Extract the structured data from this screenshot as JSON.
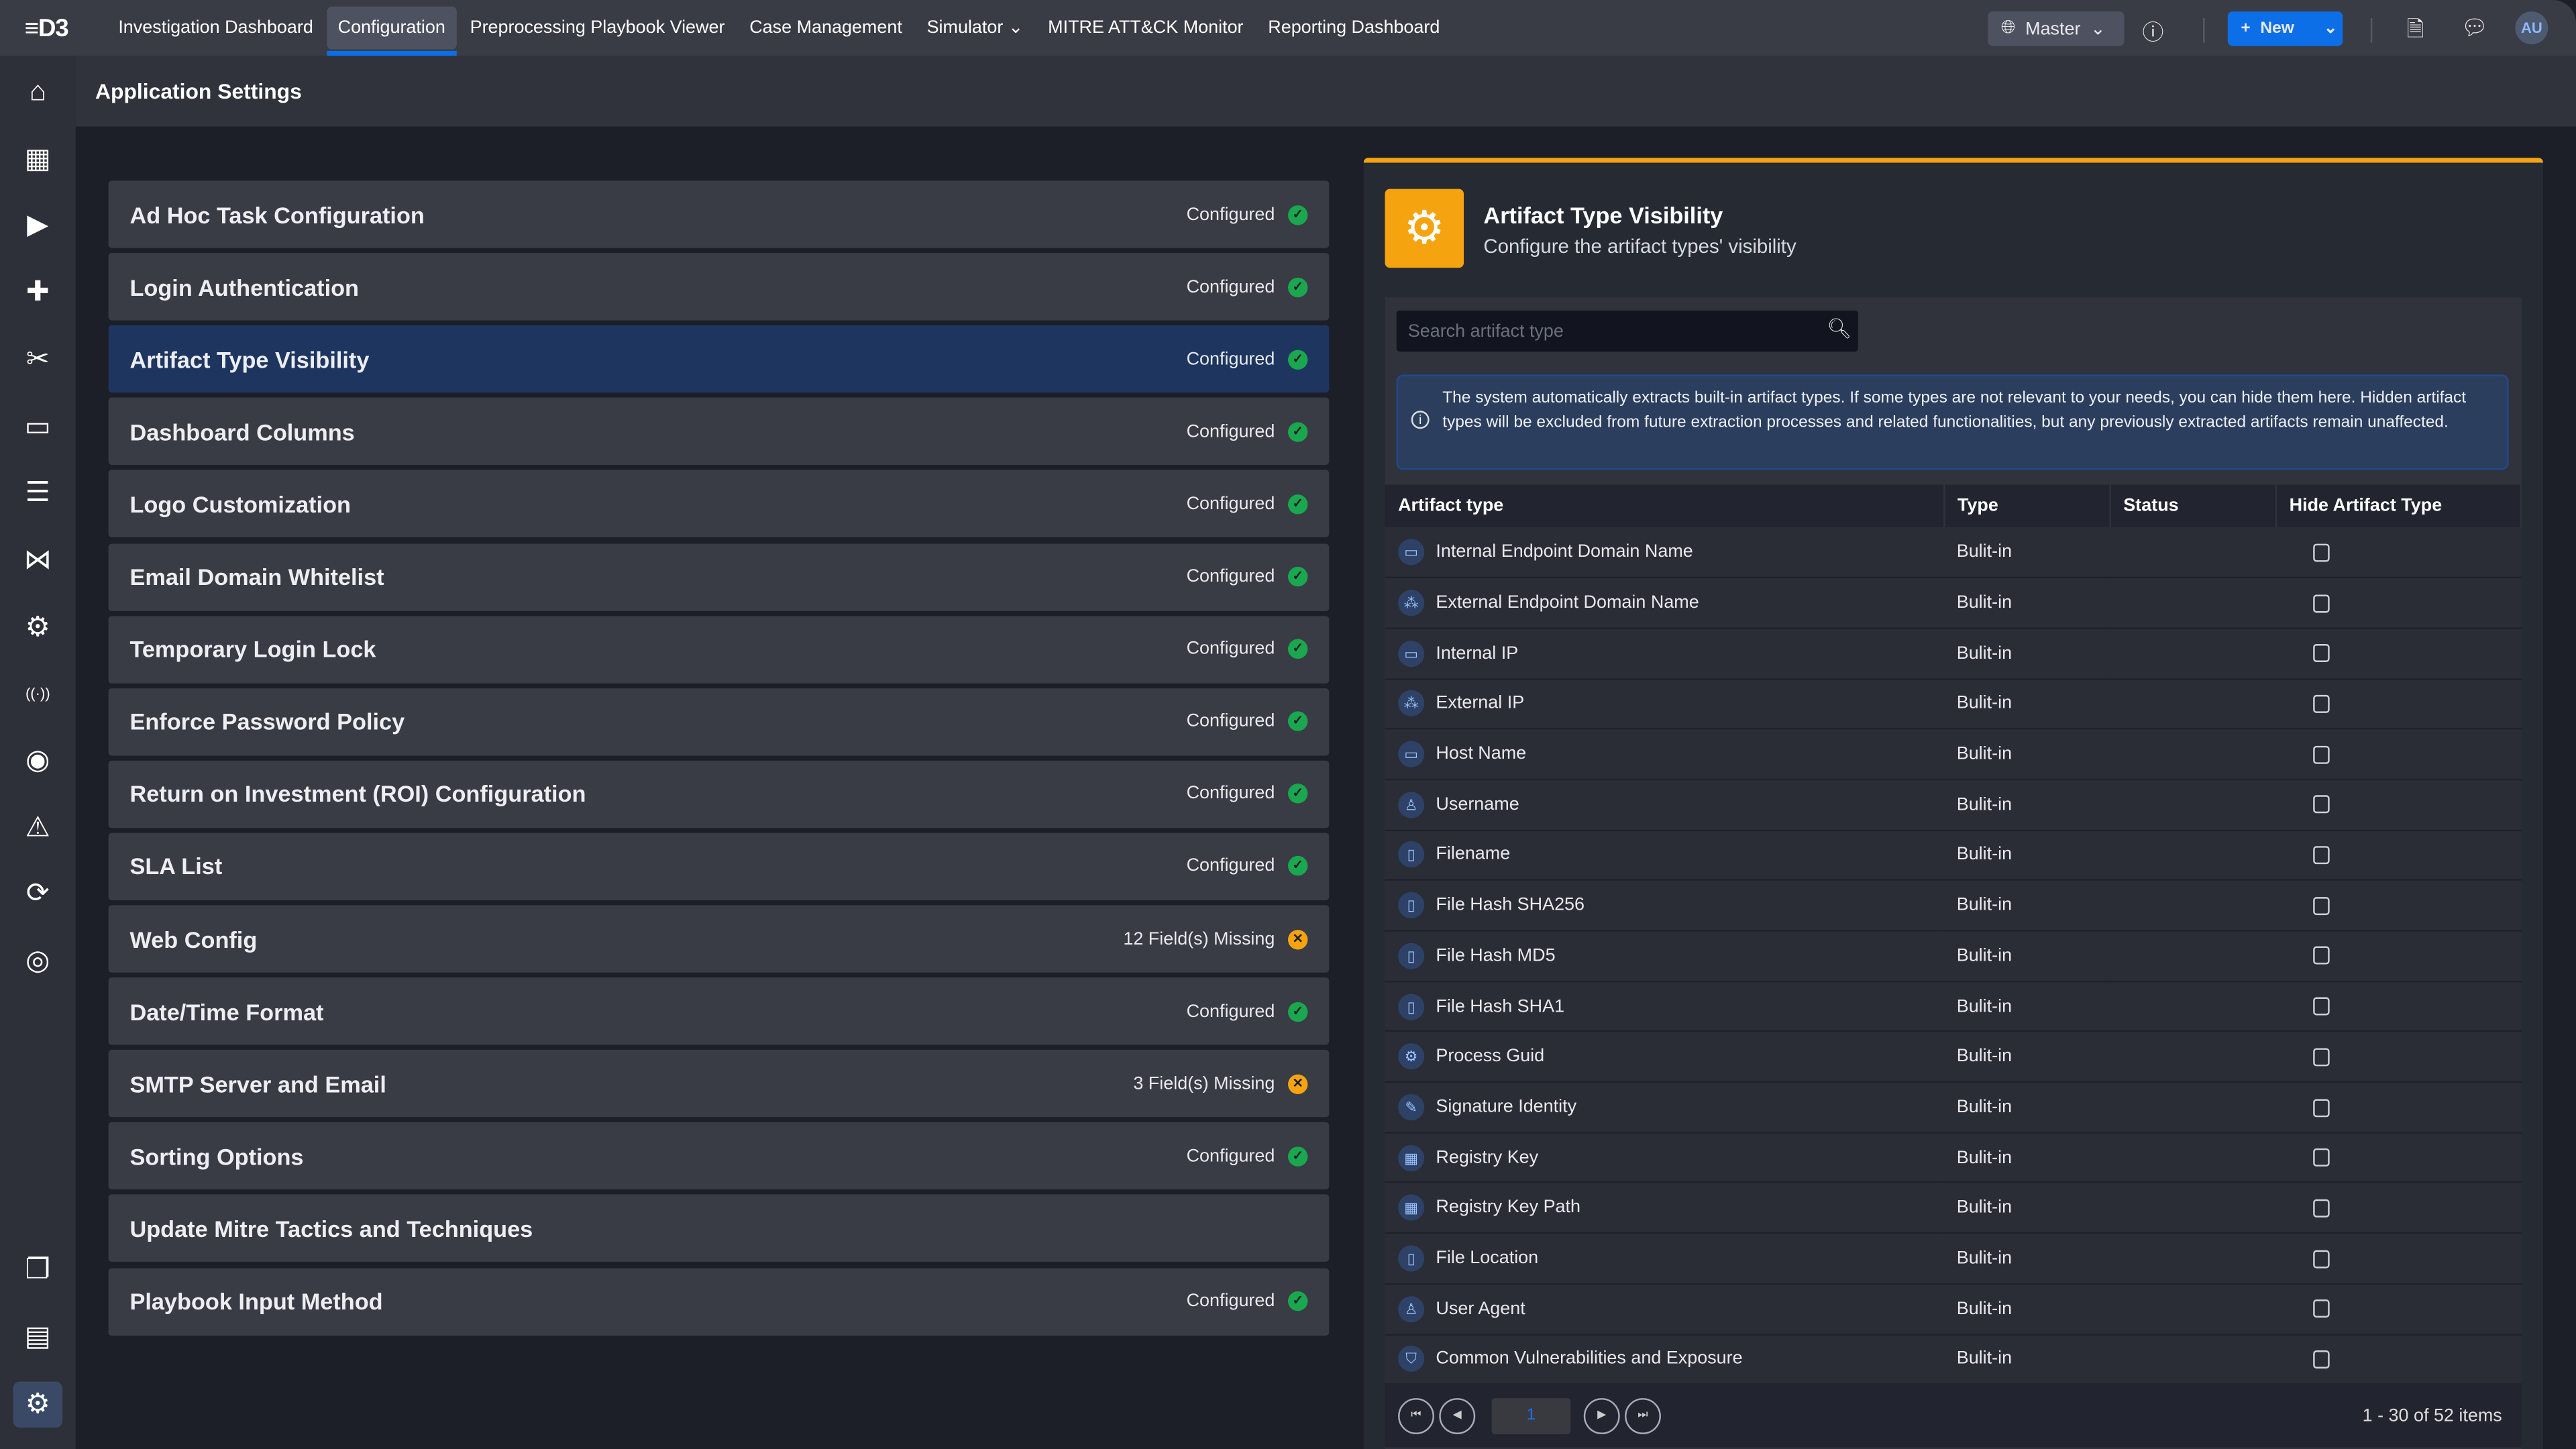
{
  "topbar": {
    "logo": "D3",
    "nav": [
      "Investigation Dashboard",
      "Configuration",
      "Preprocessing Playbook Viewer",
      "Case Management",
      "Simulator ⌄",
      "MITRE ATT&CK Monitor",
      "Reporting Dashboard"
    ],
    "active_nav": "Configuration",
    "site": "Master",
    "new_label": "New",
    "avatar": "AU"
  },
  "sidebar": {
    "icons": [
      "home-icon",
      "incident-icon",
      "playbook-icon",
      "integration-icon",
      "tools-icon",
      "calendar-icon",
      "database-icon",
      "graph-icon",
      "settings-cog-icon",
      "antenna-icon",
      "user-globe-icon",
      "alert-icon",
      "sync-icon",
      "fingerprint-icon"
    ],
    "bottom_icons": [
      "copy-icon",
      "contacts-folder-icon",
      "settings-icon"
    ]
  },
  "page": {
    "title": "Application Settings"
  },
  "settings": [
    {
      "title": "Ad Hoc Task Configuration",
      "status": "Configured",
      "state": "ok"
    },
    {
      "title": "Login Authentication",
      "status": "Configured",
      "state": "ok"
    },
    {
      "title": "Artifact Type Visibility",
      "status": "Configured",
      "state": "ok"
    },
    {
      "title": "Dashboard Columns",
      "status": "Configured",
      "state": "ok"
    },
    {
      "title": "Logo Customization",
      "status": "Configured",
      "state": "ok"
    },
    {
      "title": "Email Domain Whitelist",
      "status": "Configured",
      "state": "ok"
    },
    {
      "title": "Temporary Login Lock",
      "status": "Configured",
      "state": "ok"
    },
    {
      "title": "Enforce Password Policy",
      "status": "Configured",
      "state": "ok"
    },
    {
      "title": "Return on Investment (ROI) Configuration",
      "status": "Configured",
      "state": "ok"
    },
    {
      "title": "SLA List",
      "status": "Configured",
      "state": "ok"
    },
    {
      "title": "Web Config",
      "status": "12 Field(s) Missing",
      "state": "warn"
    },
    {
      "title": "Date/Time Format",
      "status": "Configured",
      "state": "ok"
    },
    {
      "title": "SMTP Server and Email",
      "status": "3 Field(s) Missing",
      "state": "warn"
    },
    {
      "title": "Sorting Options",
      "status": "Configured",
      "state": "ok"
    },
    {
      "title": "Update Mitre Tactics and Techniques",
      "status": "",
      "state": ""
    },
    {
      "title": "Playbook Input Method",
      "status": "Configured",
      "state": "ok"
    }
  ],
  "panel": {
    "title": "Artifact Type Visibility",
    "subtitle": "Configure the artifact types' visibility",
    "search_placeholder": "Search artifact type",
    "info": "The system automatically extracts built-in artifact types. If some types are not relevant to your needs, you can hide them here. Hidden artifact types will be excluded from future extraction processes and related functionalities, but any previously extracted artifacts remain unaffected.",
    "columns": [
      "Artifact type",
      "Type",
      "Status",
      "Hide Artifact Type"
    ],
    "rows": [
      {
        "name": "Internal Endpoint Domain Name",
        "icon": "monitor-icon",
        "type": "Bulit-in"
      },
      {
        "name": "External Endpoint Domain Name",
        "icon": "network-icon",
        "type": "Bulit-in"
      },
      {
        "name": "Internal IP",
        "icon": "monitor-icon",
        "type": "Bulit-in"
      },
      {
        "name": "External IP",
        "icon": "network-icon",
        "type": "Bulit-in"
      },
      {
        "name": "Host Name",
        "icon": "monitor-icon",
        "type": "Bulit-in"
      },
      {
        "name": "Username",
        "icon": "user-icon",
        "type": "Bulit-in"
      },
      {
        "name": "Filename",
        "icon": "file-icon",
        "type": "Bulit-in"
      },
      {
        "name": "File Hash SHA256",
        "icon": "file-icon",
        "type": "Bulit-in"
      },
      {
        "name": "File Hash MD5",
        "icon": "file-icon",
        "type": "Bulit-in"
      },
      {
        "name": "File Hash SHA1",
        "icon": "file-icon",
        "type": "Bulit-in"
      },
      {
        "name": "Process Guid",
        "icon": "cog-icon",
        "type": "Bulit-in"
      },
      {
        "name": "Signature Identity",
        "icon": "pen-icon",
        "type": "Bulit-in"
      },
      {
        "name": "Registry Key",
        "icon": "registry-icon",
        "type": "Bulit-in"
      },
      {
        "name": "Registry Key Path",
        "icon": "registry-icon",
        "type": "Bulit-in"
      },
      {
        "name": "File Location",
        "icon": "file-icon",
        "type": "Bulit-in"
      },
      {
        "name": "User Agent",
        "icon": "user-icon",
        "type": "Bulit-in"
      },
      {
        "name": "Common Vulnerabilities and Exposure",
        "icon": "shield-icon",
        "type": "Bulit-in"
      }
    ],
    "page": "1",
    "pager_info": "1 - 30 of 52 items"
  },
  "colors": {
    "accent": "#0d6fe8",
    "orange": "#f5a410",
    "ok": "#1aa74f",
    "selected_row": "#1e365f"
  }
}
